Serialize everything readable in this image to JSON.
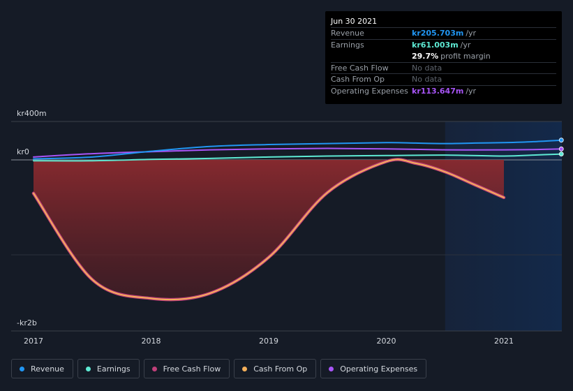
{
  "chart_data": {
    "type": "area",
    "title": "",
    "y_unit_labels": [
      "kr400m",
      "kr0",
      "-kr2b"
    ],
    "ylim": [
      -2000,
      400
    ],
    "xlim": [
      2017,
      2021.5
    ],
    "x_ticks": [
      "2017",
      "2018",
      "2019",
      "2020",
      "2021"
    ],
    "x_tick_values": [
      2017,
      2018,
      2019,
      2020,
      2021
    ],
    "forecast_start": 2020.5,
    "series": [
      {
        "name": "Revenue",
        "color": "#2196f3",
        "x": [
          2017,
          2017.5,
          2018,
          2018.5,
          2019,
          2019.5,
          2020,
          2020.25,
          2020.5,
          2020.75,
          2021,
          2021.25,
          2021.5
        ],
        "values": [
          10,
          30,
          90,
          140,
          160,
          170,
          180,
          175,
          170,
          175,
          180,
          190,
          206
        ]
      },
      {
        "name": "Earnings",
        "color": "#5eead4",
        "x": [
          2017,
          2017.5,
          2018,
          2018.5,
          2019,
          2019.5,
          2020,
          2020.5,
          2021,
          2021.25,
          2021.5
        ],
        "values": [
          -10,
          -10,
          5,
          15,
          30,
          40,
          45,
          50,
          40,
          50,
          61
        ]
      },
      {
        "name": "Free Cash Flow",
        "color": "#c0407a",
        "x": [
          2017,
          2017.5,
          2018,
          2018.5,
          2019,
          2019.5,
          2020,
          2020.25,
          2020.5,
          2020.75,
          2021
        ],
        "values": [
          -390,
          -1400,
          -1620,
          -1560,
          -1140,
          -380,
          -20,
          -40,
          -140,
          -290,
          -440
        ]
      },
      {
        "name": "Cash From Op",
        "color": "#f5b05a",
        "x": [
          2017,
          2017.5,
          2018,
          2018.5,
          2019,
          2019.5,
          2020,
          2020.25,
          2020.5,
          2020.75,
          2021
        ],
        "values": [
          -390,
          -1400,
          -1620,
          -1560,
          -1140,
          -380,
          -20,
          -40,
          -140,
          -290,
          -440
        ]
      },
      {
        "name": "Operating Expenses",
        "color": "#a855f7",
        "x": [
          2017,
          2017.5,
          2018,
          2018.5,
          2019,
          2019.5,
          2020,
          2020.5,
          2021,
          2021.25,
          2021.5
        ],
        "values": [
          30,
          65,
          85,
          105,
          115,
          120,
          115,
          105,
          105,
          108,
          114
        ]
      }
    ],
    "legend": [
      "Revenue",
      "Earnings",
      "Free Cash Flow",
      "Cash From Op",
      "Operating Expenses"
    ]
  },
  "tooltip": {
    "date": "Jun 30 2021",
    "rows": [
      {
        "label": "Revenue",
        "value": "kr205.703m",
        "unit": "/yr",
        "color": "#2196f3"
      },
      {
        "label": "Earnings",
        "value": "kr61.003m",
        "unit": "/yr",
        "color": "#5eead4"
      },
      {
        "label": "",
        "value": "29.7%",
        "unit": "profit margin",
        "color": "#ffffff"
      },
      {
        "label": "Free Cash Flow",
        "value": "No data",
        "unit": "",
        "color": "#5f656e"
      },
      {
        "label": "Cash From Op",
        "value": "No data",
        "unit": "",
        "color": "#5f656e"
      },
      {
        "label": "Operating Expenses",
        "value": "kr113.647m",
        "unit": "/yr",
        "color": "#a855f7"
      }
    ]
  },
  "legend_items": [
    {
      "label": "Revenue",
      "color": "#2196f3"
    },
    {
      "label": "Earnings",
      "color": "#5eead4"
    },
    {
      "label": "Free Cash Flow",
      "color": "#c0407a"
    },
    {
      "label": "Cash From Op",
      "color": "#f5b05a"
    },
    {
      "label": "Operating Expenses",
      "color": "#a855f7"
    }
  ]
}
